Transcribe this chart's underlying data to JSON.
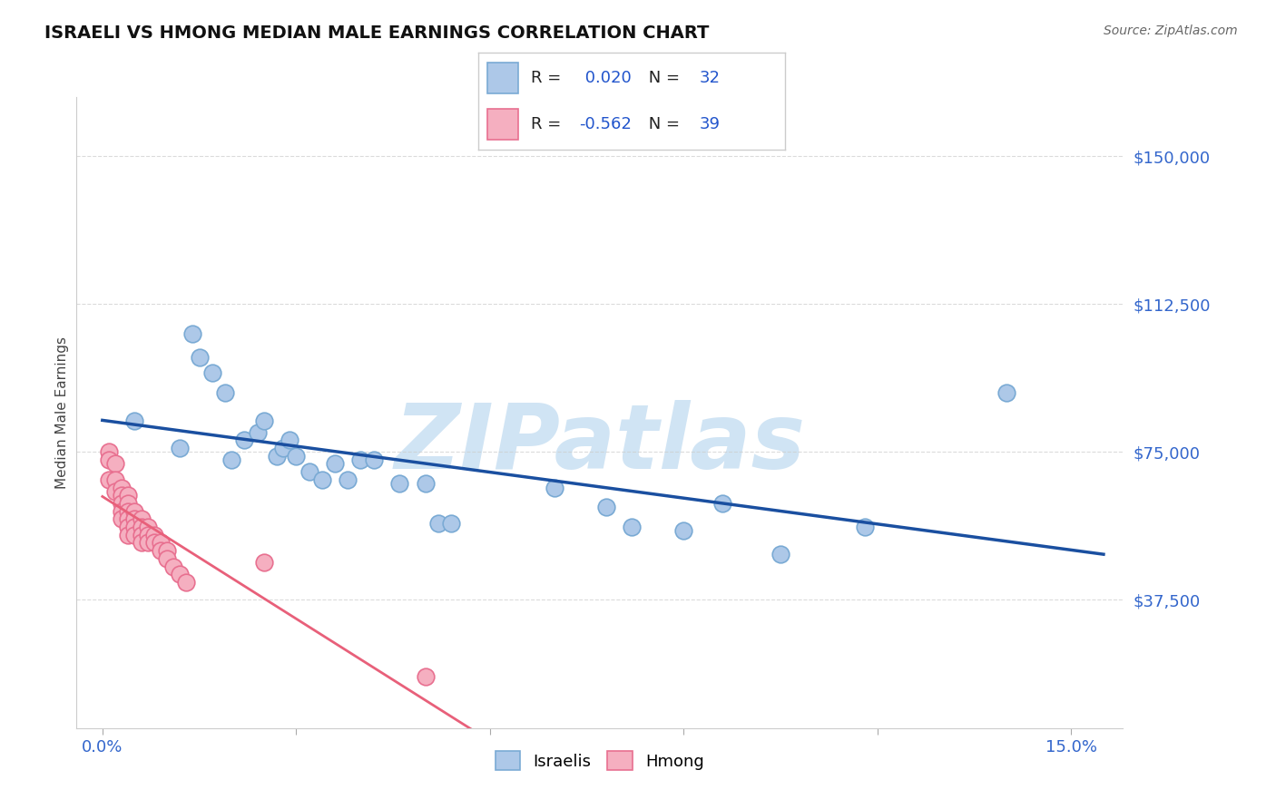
{
  "title": "ISRAELI VS HMONG MEDIAN MALE EARNINGS CORRELATION CHART",
  "source": "Source: ZipAtlas.com",
  "ylabel": "Median Male Earnings",
  "israeli_R": 0.02,
  "israeli_N": 32,
  "hmong_R": -0.562,
  "hmong_N": 39,
  "israeli_color": "#adc8e8",
  "israeli_edge": "#7aaad4",
  "hmong_color": "#f5afc0",
  "hmong_edge": "#e87090",
  "trend_israeli_color": "#1a4fa0",
  "trend_hmong_color": "#e8607a",
  "watermark_color": "#d0e4f4",
  "xlim": [
    -0.004,
    0.158
  ],
  "ylim": [
    5000,
    165000
  ],
  "ytick_vals": [
    37500,
    75000,
    112500,
    150000
  ],
  "ytick_labels": [
    "$37,500",
    "$75,000",
    "$112,500",
    "$150,000"
  ],
  "background_color": "#ffffff",
  "grid_color": "#cccccc",
  "israeli_x": [
    0.005,
    0.012,
    0.014,
    0.015,
    0.017,
    0.019,
    0.02,
    0.022,
    0.024,
    0.025,
    0.027,
    0.028,
    0.029,
    0.03,
    0.032,
    0.034,
    0.036,
    0.038,
    0.04,
    0.042,
    0.046,
    0.05,
    0.052,
    0.054,
    0.07,
    0.078,
    0.082,
    0.09,
    0.096,
    0.105,
    0.118,
    0.14
  ],
  "israeli_y": [
    83000,
    76000,
    105000,
    99000,
    95000,
    90000,
    73000,
    78000,
    80000,
    83000,
    74000,
    76000,
    78000,
    74000,
    70000,
    68000,
    72000,
    68000,
    73000,
    73000,
    67000,
    67000,
    57000,
    57000,
    66000,
    61000,
    56000,
    55000,
    62000,
    49000,
    56000,
    90000
  ],
  "hmong_x": [
    0.001,
    0.001,
    0.001,
    0.002,
    0.002,
    0.002,
    0.003,
    0.003,
    0.003,
    0.003,
    0.003,
    0.004,
    0.004,
    0.004,
    0.004,
    0.004,
    0.004,
    0.005,
    0.005,
    0.005,
    0.005,
    0.006,
    0.006,
    0.006,
    0.006,
    0.007,
    0.007,
    0.007,
    0.008,
    0.008,
    0.009,
    0.009,
    0.01,
    0.01,
    0.011,
    0.012,
    0.013,
    0.025,
    0.05
  ],
  "hmong_y": [
    75000,
    73000,
    68000,
    72000,
    68000,
    65000,
    66000,
    64000,
    62000,
    60000,
    58000,
    64000,
    62000,
    60000,
    58000,
    56000,
    54000,
    60000,
    58000,
    56000,
    54000,
    58000,
    56000,
    54000,
    52000,
    56000,
    54000,
    52000,
    54000,
    52000,
    52000,
    50000,
    50000,
    48000,
    46000,
    44000,
    42000,
    47000,
    18000
  ]
}
